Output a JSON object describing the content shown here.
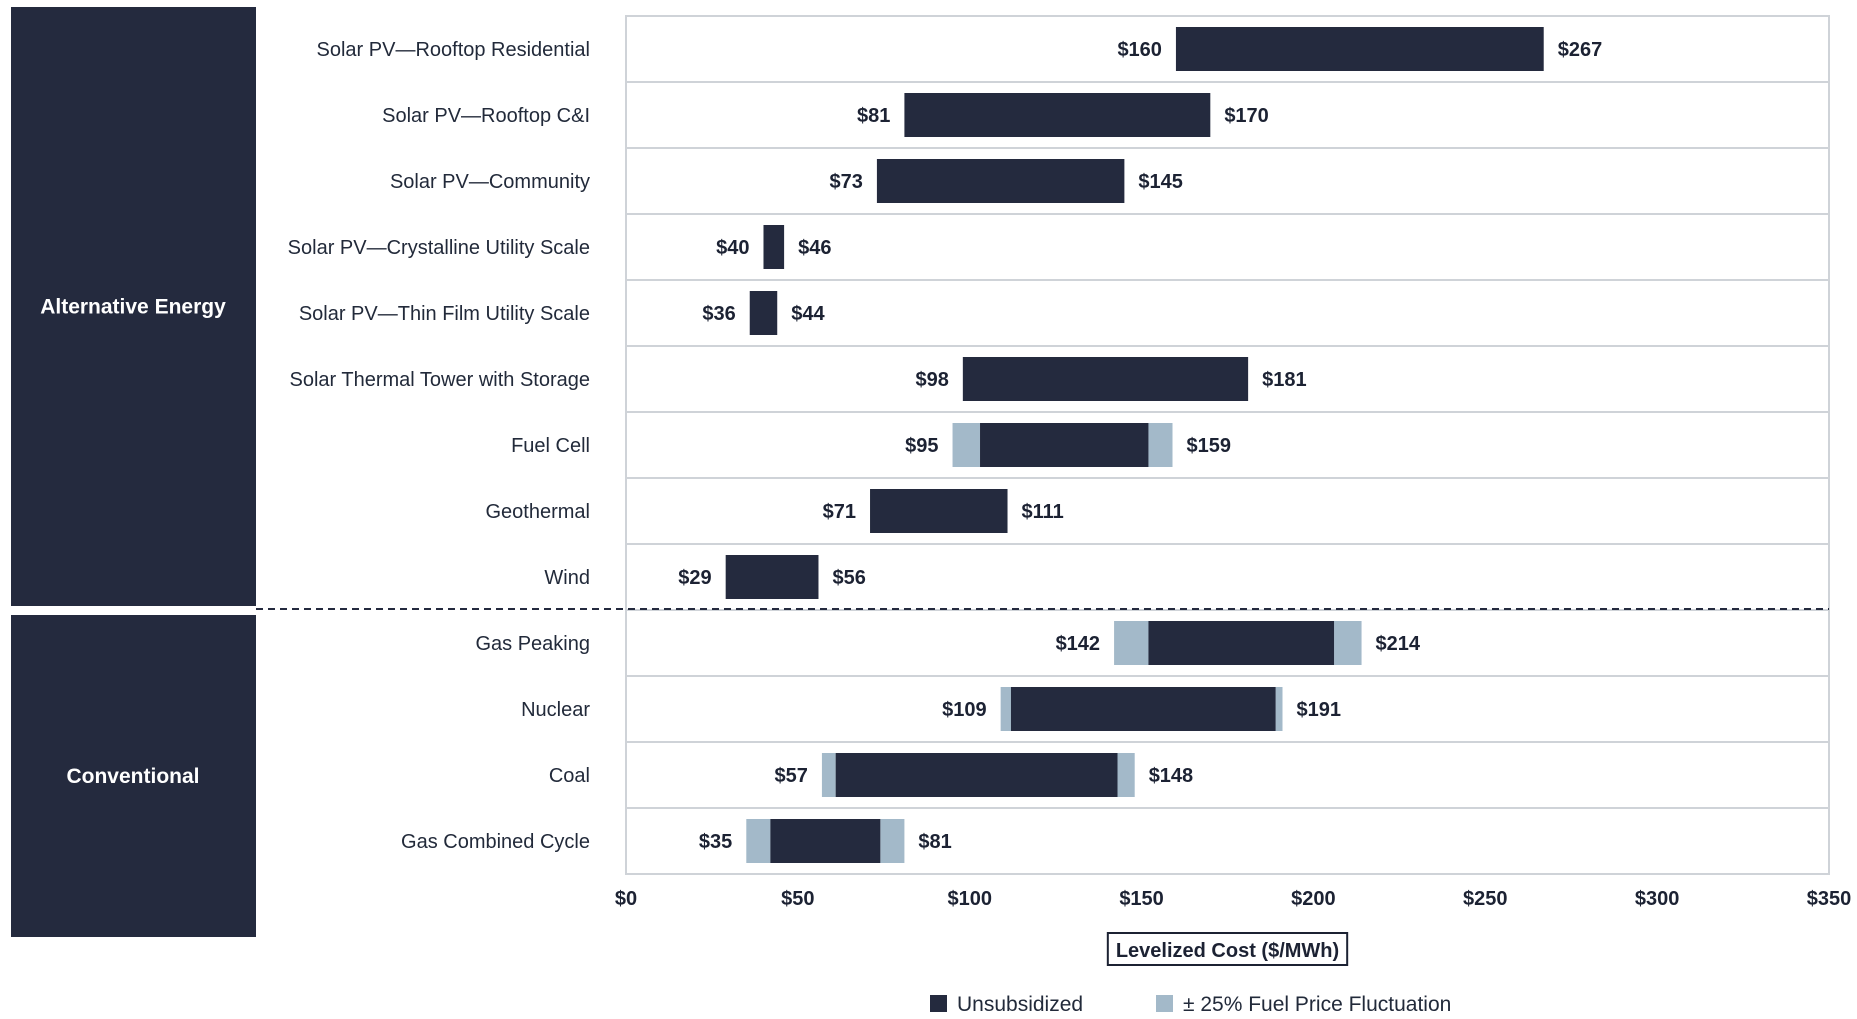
{
  "chart_data": {
    "type": "bar",
    "subtype": "floating-range",
    "xlabel": "Levelized Cost ($/MWh)",
    "xlim": [
      0,
      350
    ],
    "xticks": [
      0,
      50,
      100,
      150,
      200,
      250,
      300,
      350
    ],
    "xtick_labels": [
      "$0",
      "$50",
      "$100",
      "$150",
      "$200",
      "$250",
      "$300",
      "$350"
    ],
    "grid": "horizontal row separators",
    "colors": {
      "unsubsidized": "#242a3e",
      "fluctuation": "#a3b9c9",
      "group_band": "#242a3e"
    },
    "legend": {
      "position": "bottom-center",
      "items": [
        {
          "label": "Unsubsidized",
          "color": "#242a3e"
        },
        {
          "label": "± 25% Fuel Price Fluctuation",
          "color": "#a3b9c9"
        }
      ]
    },
    "groups": [
      {
        "name": "Alternative Energy",
        "rows": [
          0,
          8
        ]
      },
      {
        "name": "Conventional",
        "rows": [
          9,
          12
        ]
      }
    ],
    "categories": [
      "Solar PV—Rooftop Residential",
      "Solar PV—Rooftop C&I",
      "Solar PV—Community",
      "Solar PV—Crystalline Utility Scale",
      "Solar PV—Thin Film Utility Scale",
      "Solar Thermal Tower with Storage",
      "Fuel Cell",
      "Geothermal",
      "Wind",
      "Gas Peaking",
      "Nuclear",
      "Coal",
      "Gas Combined Cycle"
    ],
    "low": [
      160,
      81,
      73,
      40,
      36,
      98,
      95,
      71,
      29,
      142,
      109,
      57,
      35
    ],
    "high": [
      267,
      170,
      145,
      46,
      44,
      181,
      159,
      111,
      56,
      214,
      191,
      148,
      81
    ],
    "unsubsidized_range": [
      [
        160,
        267
      ],
      [
        81,
        170
      ],
      [
        73,
        145
      ],
      [
        40,
        46
      ],
      [
        36,
        44
      ],
      [
        98,
        181
      ],
      [
        103,
        152
      ],
      [
        71,
        111
      ],
      [
        29,
        56
      ],
      [
        152,
        206
      ],
      [
        112,
        189
      ],
      [
        61,
        143
      ],
      [
        42,
        74
      ]
    ],
    "low_labels": [
      "$160",
      "$81",
      "$73",
      "$40",
      "$36",
      "$98",
      "$95",
      "$71",
      "$29",
      "$142",
      "$109",
      "$57",
      "$35"
    ],
    "high_labels": [
      "$267",
      "$170",
      "$145",
      "$46",
      "$44",
      "$181",
      "$159",
      "$111",
      "$56",
      "$214",
      "$191",
      "$148",
      "$81"
    ]
  }
}
